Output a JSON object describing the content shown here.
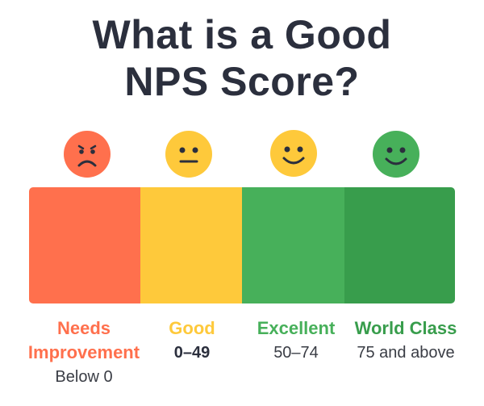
{
  "title": {
    "line1": "What is a Good",
    "line2": "NPS Score?"
  },
  "colors": {
    "title": "#2b2f3d",
    "needs_improvement": "#ff704d",
    "good": "#fec93b",
    "excellent": "#47b05a",
    "world_class": "#389d4c",
    "face_outline": "#2b2f3d"
  },
  "faces": [
    {
      "name": "sad-face-icon",
      "color": "#ff704d",
      "expression": "sad"
    },
    {
      "name": "neutral-face-icon",
      "color": "#fec93b",
      "expression": "neutral"
    },
    {
      "name": "smile-face-icon",
      "color": "#fec93b",
      "expression": "smile"
    },
    {
      "name": "happy-face-icon",
      "color": "#47b05a",
      "expression": "smile"
    }
  ],
  "categories": [
    {
      "label": "Needs Improvement",
      "label_line1": "Needs",
      "label_line2": "Improvement",
      "range": "Below 0",
      "color": "#ff704d"
    },
    {
      "label": "Good",
      "range": "0–49",
      "color": "#fec93b"
    },
    {
      "label": "Excellent",
      "range": "50–74",
      "color": "#47b05a"
    },
    {
      "label": "World Class",
      "range": "75 and above",
      "color": "#389d4c"
    }
  ]
}
